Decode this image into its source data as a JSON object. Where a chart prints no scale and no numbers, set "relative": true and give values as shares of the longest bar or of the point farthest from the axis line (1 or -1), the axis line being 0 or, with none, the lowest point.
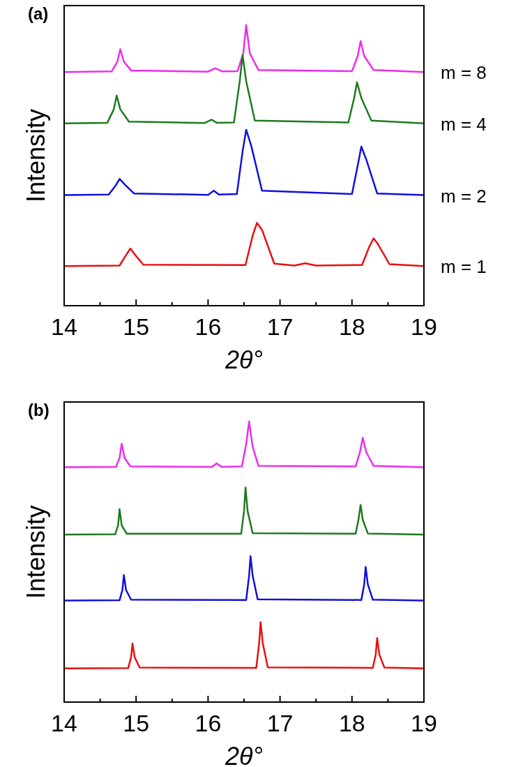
{
  "chart_data": [
    {
      "type": "line",
      "title": "(a)",
      "xlabel": "2θ°",
      "ylabel": "Intensity",
      "relative": true,
      "xlim": [
        14,
        19
      ],
      "xticks": [
        14,
        {
          "value": 14.5,
          "label": null
        },
        15,
        {
          "value": 15.5,
          "label": null
        },
        16,
        {
          "value": 16.5,
          "label": null
        },
        17,
        {
          "value": 17.5,
          "label": null
        },
        18,
        {
          "value": 18.5,
          "label": null
        },
        19
      ],
      "marker": "none",
      "series": [
        {
          "name": "m = 8",
          "color": "#ee2cee",
          "x": [
            14,
            14.66,
            14.74,
            14.78,
            14.83,
            14.93,
            16.0,
            16.1,
            16.2,
            16.41,
            16.49,
            16.53,
            16.58,
            16.7,
            18.0,
            18.08,
            18.12,
            18.17,
            18.3,
            19
          ],
          "values": [
            0.833,
            0.835,
            0.87,
            0.914,
            0.87,
            0.838,
            0.834,
            0.846,
            0.835,
            0.836,
            0.9,
            1.0,
            0.9,
            0.84,
            0.836,
            0.89,
            0.943,
            0.89,
            0.84,
            0.833
          ]
        },
        {
          "name": "m = 4",
          "color": "#1f7a1f",
          "x": [
            14,
            14.6,
            14.69,
            14.73,
            14.78,
            14.9,
            15.95,
            16.05,
            16.12,
            16.36,
            16.44,
            16.48,
            16.53,
            16.65,
            17.95,
            18.03,
            18.07,
            18.13,
            18.27,
            19
          ],
          "values": [
            0.65,
            0.652,
            0.7,
            0.749,
            0.7,
            0.656,
            0.651,
            0.663,
            0.652,
            0.653,
            0.8,
            0.893,
            0.8,
            0.66,
            0.653,
            0.74,
            0.796,
            0.74,
            0.66,
            0.65
          ]
        },
        {
          "name": "m = 2",
          "color": "#1010dd",
          "x": [
            14,
            14.62,
            14.72,
            14.77,
            14.85,
            14.97,
            16.0,
            16.08,
            16.15,
            16.4,
            16.48,
            16.53,
            16.6,
            16.75,
            18.0,
            18.08,
            18.13,
            18.2,
            18.35,
            19
          ],
          "values": [
            0.394,
            0.396,
            0.43,
            0.452,
            0.43,
            0.4,
            0.395,
            0.41,
            0.396,
            0.398,
            0.55,
            0.627,
            0.57,
            0.41,
            0.398,
            0.5,
            0.567,
            0.52,
            0.4,
            0.394
          ]
        },
        {
          "name": "m = 1",
          "color": "#e81010",
          "x": [
            14,
            14.77,
            14.86,
            14.92,
            14.99,
            15.1,
            16.52,
            16.62,
            16.68,
            16.75,
            16.92,
            17.2,
            17.35,
            17.5,
            18.14,
            18.24,
            18.3,
            18.36,
            18.52,
            19
          ],
          "values": [
            0.141,
            0.143,
            0.18,
            0.204,
            0.18,
            0.146,
            0.145,
            0.25,
            0.295,
            0.27,
            0.15,
            0.143,
            0.151,
            0.143,
            0.145,
            0.21,
            0.24,
            0.22,
            0.148,
            0.141
          ]
        }
      ]
    },
    {
      "type": "line",
      "title": "(b)",
      "xlabel": "2θ°",
      "ylabel": "Intensity",
      "relative": true,
      "xlim": [
        14,
        19
      ],
      "xticks": [
        14,
        {
          "value": 14.5,
          "label": null
        },
        15,
        {
          "value": 15.5,
          "label": null
        },
        16,
        {
          "value": 16.5,
          "label": null
        },
        17,
        {
          "value": 17.5,
          "label": null
        },
        18,
        {
          "value": 18.5,
          "label": null
        },
        19
      ],
      "marker": "none",
      "series": [
        {
          "color": "#ee2cee",
          "x": [
            14,
            14.72,
            14.77,
            14.8,
            14.84,
            14.92,
            16.05,
            16.12,
            16.19,
            16.47,
            16.53,
            16.57,
            16.62,
            16.7,
            18.05,
            18.11,
            18.15,
            18.2,
            18.3,
            19
          ],
          "values": [
            0.837,
            0.838,
            0.87,
            0.921,
            0.87,
            0.84,
            0.838,
            0.851,
            0.838,
            0.84,
            0.92,
            1.0,
            0.91,
            0.842,
            0.84,
            0.89,
            0.942,
            0.89,
            0.842,
            0.837
          ]
        },
        {
          "color": "#1f7a1f",
          "x": [
            14,
            14.71,
            14.75,
            14.77,
            14.8,
            14.87,
            16.46,
            16.5,
            16.52,
            16.55,
            16.62,
            18.05,
            18.09,
            18.12,
            18.15,
            18.22,
            19
          ],
          "values": [
            0.597,
            0.598,
            0.63,
            0.688,
            0.63,
            0.6,
            0.6,
            0.68,
            0.765,
            0.68,
            0.602,
            0.6,
            0.65,
            0.703,
            0.65,
            0.601,
            0.597
          ]
        },
        {
          "color": "#1010dd",
          "x": [
            14,
            14.77,
            14.81,
            14.83,
            14.86,
            14.93,
            16.53,
            16.57,
            16.59,
            16.62,
            16.69,
            18.13,
            18.17,
            18.19,
            18.22,
            18.29,
            19
          ],
          "values": [
            0.362,
            0.363,
            0.4,
            0.453,
            0.4,
            0.365,
            0.364,
            0.45,
            0.52,
            0.45,
            0.366,
            0.364,
            0.42,
            0.482,
            0.42,
            0.365,
            0.362
          ]
        },
        {
          "color": "#e81010",
          "x": [
            14,
            14.89,
            14.93,
            14.95,
            14.98,
            15.05,
            16.67,
            16.71,
            16.73,
            16.76,
            16.83,
            18.29,
            18.33,
            18.35,
            18.38,
            18.45,
            19
          ],
          "values": [
            0.12,
            0.121,
            0.16,
            0.209,
            0.16,
            0.123,
            0.122,
            0.21,
            0.285,
            0.21,
            0.124,
            0.122,
            0.17,
            0.228,
            0.17,
            0.123,
            0.12
          ]
        }
      ]
    }
  ]
}
